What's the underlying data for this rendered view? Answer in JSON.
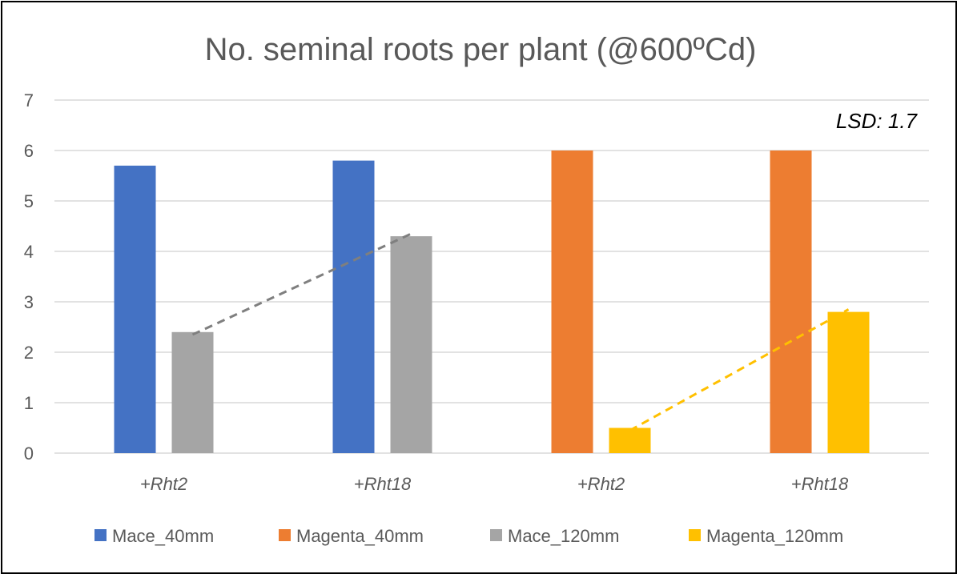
{
  "chart_data": {
    "type": "bar",
    "title": "No. seminal roots per plant (@600ºCd)",
    "categories": [
      "+Rht2",
      "+Rht18",
      "+Rht2",
      "+Rht18"
    ],
    "ylim": [
      0,
      7
    ],
    "yticks": [
      "0",
      "1",
      "2",
      "3",
      "4",
      "5",
      "6",
      "7"
    ],
    "grid": true,
    "legend_position": "bottom",
    "series": [
      {
        "name": "Mace_40mm",
        "color": "#4472C4",
        "values": [
          5.7,
          5.8,
          null,
          null
        ]
      },
      {
        "name": "Magenta_40mm",
        "color": "#ED7D31",
        "values": [
          null,
          null,
          6.0,
          6.0
        ]
      },
      {
        "name": "Mace_120mm",
        "color": "#A5A5A5",
        "values": [
          2.4,
          4.3,
          null,
          null
        ]
      },
      {
        "name": "Magenta_120mm",
        "color": "#FFC000",
        "values": [
          null,
          null,
          0.5,
          2.8
        ]
      }
    ],
    "trendlines": [
      {
        "series": "Mace_120mm",
        "color": "#7F7F7F",
        "from": [
          0,
          2.35
        ],
        "to": [
          1,
          4.35
        ]
      },
      {
        "series": "Magenta_120mm",
        "color": "#FFC000",
        "from": [
          2,
          0.45
        ],
        "to": [
          3,
          2.85
        ]
      }
    ],
    "annotation": "LSD: 1.7"
  }
}
